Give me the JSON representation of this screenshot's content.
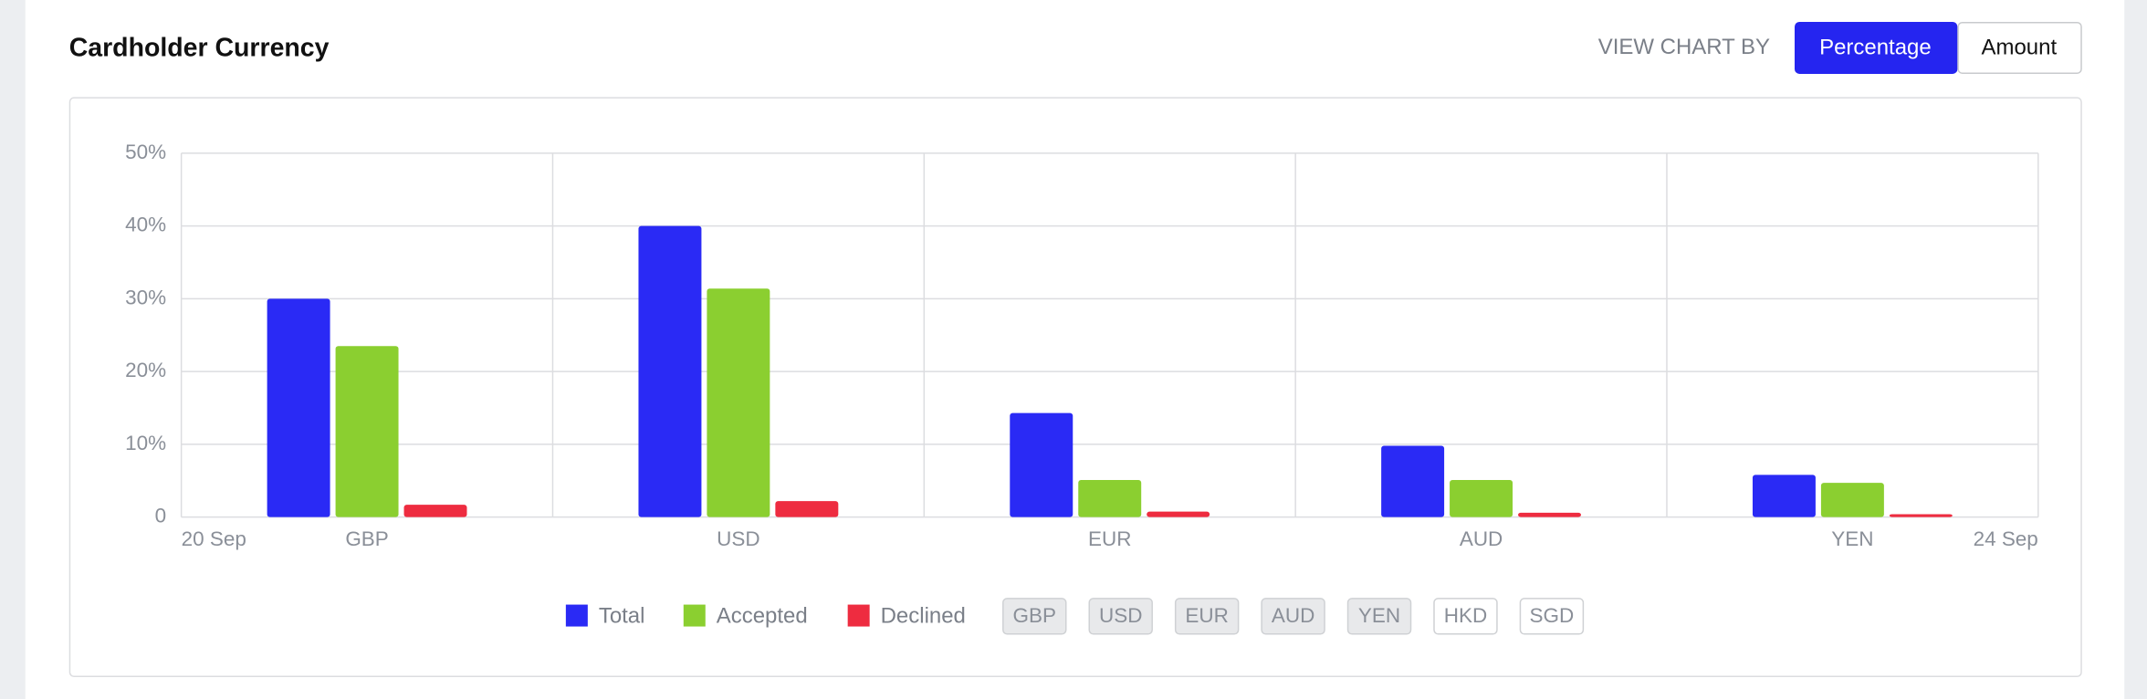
{
  "header": {
    "title": "Cardholder  Currency",
    "view_by": {
      "label": "VIEW CHART BY",
      "options": [
        "Percentage",
        "Amount"
      ],
      "selected": 0
    }
  },
  "chart_data": {
    "type": "bar",
    "categories": [
      "GBP",
      "USD",
      "EUR",
      "AUD",
      "YEN"
    ],
    "x_end_labels": [
      "20 Sep",
      "24 Sep"
    ],
    "series": [
      {
        "name": "Total",
        "color": "#2a2af5",
        "values": [
          30,
          40,
          14.3,
          9.8,
          5.8
        ]
      },
      {
        "name": "Accepted",
        "color": "#8bcf30",
        "values": [
          23.5,
          31.4,
          5.1,
          5.1,
          4.7
        ]
      },
      {
        "name": "Declined",
        "color": "#ee2c40",
        "values": [
          1.7,
          2.2,
          0.75,
          0.6,
          0.4
        ]
      }
    ],
    "ylim": [
      0,
      50
    ],
    "yticks": [
      0,
      {
        "value": 10,
        "label": "10%"
      },
      {
        "value": 20,
        "label": "20%"
      },
      {
        "value": 30,
        "label": "30%"
      },
      {
        "value": 40,
        "label": "40%"
      },
      {
        "value": 50,
        "label": "50%"
      }
    ],
    "grid": true
  },
  "currency_filters": [
    {
      "label": "GBP",
      "active": true
    },
    {
      "label": "USD",
      "active": true
    },
    {
      "label": "EUR",
      "active": true
    },
    {
      "label": "AUD",
      "active": true
    },
    {
      "label": "YEN",
      "active": true
    },
    {
      "label": "HKD",
      "active": false
    },
    {
      "label": "SGD",
      "active": false
    }
  ]
}
